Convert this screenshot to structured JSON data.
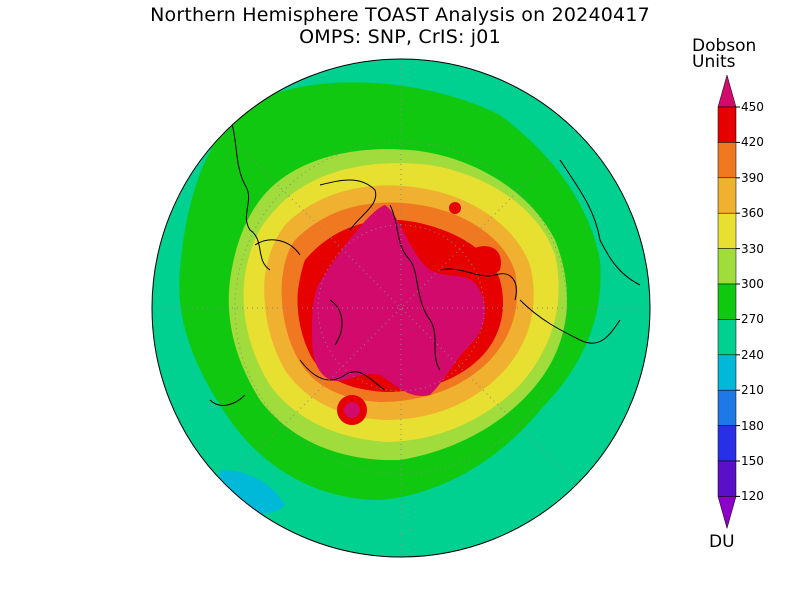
{
  "title": {
    "line1": "Northern Hemisphere TOAST Analysis on 20240417",
    "line2": "OMPS: SNP, CrIS: j01"
  },
  "units": {
    "line1": "Dobson",
    "line2": "Units",
    "bottom": "DU"
  },
  "colorbar": {
    "levels": [
      "450",
      "420",
      "390",
      "360",
      "330",
      "300",
      "270",
      "240",
      "210",
      "180",
      "150",
      "120"
    ],
    "colors": [
      "#d10a6b",
      "#e60000",
      "#f07820",
      "#f0b030",
      "#e8e030",
      "#a0dc3c",
      "#10c810",
      "#00d090",
      "#00b8d8",
      "#1e78e6",
      "#2830e6",
      "#5a10c8",
      "#8c00c8"
    ]
  },
  "map": {
    "background_color": "#00d090",
    "graticule": "dotted"
  }
}
